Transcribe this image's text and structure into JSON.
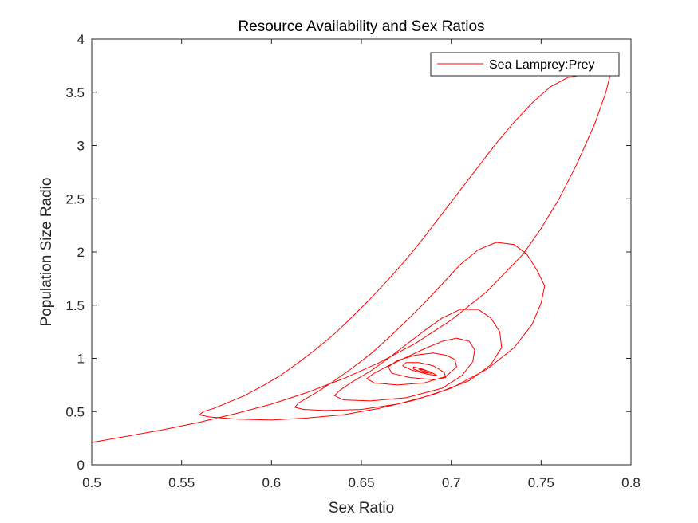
{
  "chart_data": {
    "type": "line",
    "title": "Resource Availability and Sex Ratios",
    "xlabel": "Sex Ratio",
    "ylabel": "Population Size Radio",
    "xlim": [
      0.5,
      0.8
    ],
    "ylim": [
      0,
      4
    ],
    "xticks": [
      "0.5",
      "0.55",
      "0.6",
      "0.65",
      "0.7",
      "0.75",
      "0.8"
    ],
    "yticks": [
      "0",
      "0.5",
      "1",
      "1.5",
      "2",
      "2.5",
      "3",
      "3.5",
      "4"
    ],
    "grid": false,
    "legend": {
      "position": "top-right",
      "entries": [
        "Sea Lamprey:Prey"
      ]
    },
    "series": [
      {
        "name": "Sea Lamprey:Prey",
        "color": "#ff0000",
        "x": [
          0.5,
          0.52,
          0.54,
          0.56,
          0.58,
          0.6,
          0.62,
          0.64,
          0.66,
          0.68,
          0.7,
          0.72,
          0.74,
          0.75,
          0.76,
          0.77,
          0.78,
          0.786,
          0.789,
          0.789,
          0.787,
          0.782,
          0.775,
          0.765,
          0.755,
          0.745,
          0.735,
          0.725,
          0.715,
          0.705,
          0.695,
          0.685,
          0.675,
          0.665,
          0.655,
          0.645,
          0.635,
          0.625,
          0.615,
          0.605,
          0.595,
          0.585,
          0.575,
          0.568,
          0.562,
          0.56,
          0.565,
          0.58,
          0.6,
          0.62,
          0.64,
          0.66,
          0.68,
          0.7,
          0.72,
          0.735,
          0.745,
          0.75,
          0.752,
          0.748,
          0.742,
          0.735,
          0.725,
          0.715,
          0.705,
          0.695,
          0.685,
          0.675,
          0.665,
          0.655,
          0.645,
          0.635,
          0.627,
          0.62,
          0.615,
          0.613,
          0.618,
          0.63,
          0.65,
          0.67,
          0.69,
          0.71,
          0.722,
          0.728,
          0.727,
          0.722,
          0.715,
          0.705,
          0.695,
          0.685,
          0.675,
          0.665,
          0.655,
          0.645,
          0.638,
          0.635,
          0.64,
          0.655,
          0.675,
          0.695,
          0.706,
          0.712,
          0.713,
          0.71,
          0.703,
          0.695,
          0.685,
          0.675,
          0.665,
          0.657,
          0.653,
          0.657,
          0.67,
          0.685,
          0.697,
          0.703,
          0.702,
          0.697,
          0.69,
          0.68,
          0.67,
          0.665,
          0.667,
          0.677,
          0.69,
          0.697,
          0.696,
          0.69,
          0.682,
          0.675,
          0.673,
          0.678,
          0.687,
          0.692,
          0.69,
          0.684,
          0.679,
          0.679,
          0.684,
          0.689,
          0.689,
          0.685,
          0.682,
          0.684,
          0.687,
          0.687,
          0.685,
          0.685,
          0.686
        ],
        "y": [
          0.21,
          0.27,
          0.33,
          0.4,
          0.48,
          0.57,
          0.68,
          0.81,
          0.96,
          1.14,
          1.36,
          1.63,
          1.98,
          2.22,
          2.5,
          2.83,
          3.21,
          3.5,
          3.7,
          3.72,
          3.7,
          3.68,
          3.67,
          3.64,
          3.55,
          3.4,
          3.22,
          3.02,
          2.8,
          2.58,
          2.36,
          2.14,
          1.93,
          1.74,
          1.56,
          1.39,
          1.23,
          1.09,
          0.96,
          0.84,
          0.74,
          0.65,
          0.58,
          0.53,
          0.5,
          0.47,
          0.45,
          0.43,
          0.42,
          0.44,
          0.47,
          0.53,
          0.61,
          0.72,
          0.9,
          1.1,
          1.32,
          1.52,
          1.68,
          1.82,
          1.98,
          2.07,
          2.09,
          2.02,
          1.88,
          1.7,
          1.52,
          1.35,
          1.19,
          1.04,
          0.91,
          0.79,
          0.7,
          0.63,
          0.58,
          0.54,
          0.52,
          0.51,
          0.52,
          0.57,
          0.66,
          0.79,
          0.94,
          1.1,
          1.25,
          1.38,
          1.46,
          1.46,
          1.38,
          1.26,
          1.13,
          1.0,
          0.88,
          0.78,
          0.7,
          0.65,
          0.61,
          0.6,
          0.63,
          0.72,
          0.84,
          0.97,
          1.08,
          1.16,
          1.19,
          1.16,
          1.09,
          1.01,
          0.93,
          0.86,
          0.81,
          0.77,
          0.75,
          0.77,
          0.83,
          0.92,
          0.99,
          1.03,
          1.05,
          1.03,
          0.98,
          0.92,
          0.86,
          0.82,
          0.8,
          0.82,
          0.87,
          0.93,
          0.96,
          0.96,
          0.93,
          0.89,
          0.85,
          0.84,
          0.86,
          0.9,
          0.92,
          0.9,
          0.87,
          0.86,
          0.87,
          0.89,
          0.9,
          0.88,
          0.86,
          0.87,
          0.88,
          0.88,
          0.87
        ]
      }
    ]
  }
}
